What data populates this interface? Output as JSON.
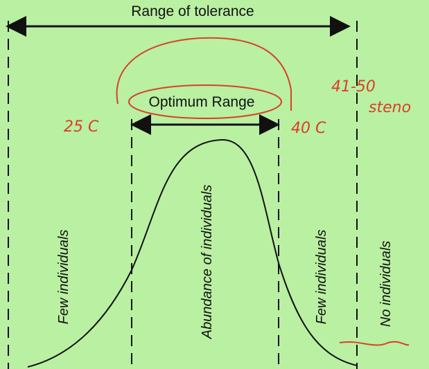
{
  "title": "Range of tolerance",
  "optimum_label": "Optimum Range",
  "zones": [
    "Few individuals",
    "Abundance of individuals",
    "Few individuals",
    "No individuals"
  ],
  "annotations": [
    "25 C",
    "40 C",
    "41-50",
    "steno"
  ]
}
